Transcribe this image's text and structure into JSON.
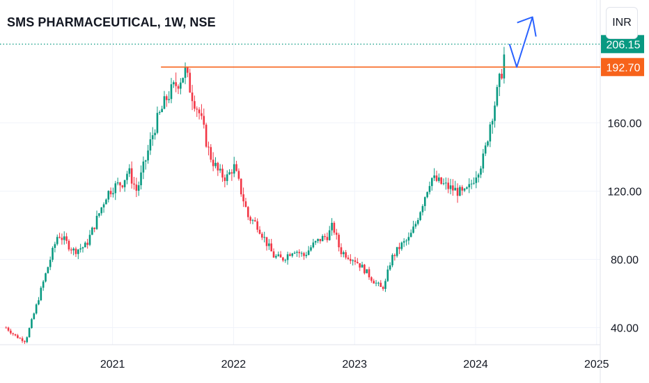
{
  "header": {
    "title": "SMS PHARMACEUTICAL, 1W, NSE",
    "currency": "INR"
  },
  "chart_data": {
    "type": "candlestick",
    "symbol": "SMS PHARMACEUTICAL",
    "interval": "1W",
    "exchange": "NSE",
    "currency": "INR",
    "x_tick_labels": [
      "2021",
      "2022",
      "2023",
      "2024",
      "2025"
    ],
    "y_tick_labels": [
      "40.00",
      "80.00",
      "120.00",
      "160.00"
    ],
    "ylim": [
      30,
      232
    ],
    "grid": true,
    "last_price": {
      "value": 206.15,
      "label": "206.15",
      "color": "#089981"
    },
    "resistance": {
      "value": 192.7,
      "label": "192.70",
      "color": "#f7631b",
      "from": 2021.4
    },
    "projection_arrow": {
      "color": "#2962ff",
      "points": [
        [
          2024.28,
          206.15
        ],
        [
          2024.34,
          192.7
        ],
        [
          2024.47,
          222
        ]
      ]
    },
    "up_color": "#089981",
    "down_color": "#f23645",
    "price_path": [
      [
        2020.12,
        40
      ],
      [
        2020.2,
        35
      ],
      [
        2020.28,
        32
      ],
      [
        2020.35,
        48
      ],
      [
        2020.45,
        72
      ],
      [
        2020.55,
        95
      ],
      [
        2020.68,
        85
      ],
      [
        2020.78,
        88
      ],
      [
        2020.85,
        100
      ],
      [
        2020.95,
        118
      ],
      [
        2021.0,
        122
      ],
      [
        2021.08,
        125
      ],
      [
        2021.13,
        132
      ],
      [
        2021.2,
        120
      ],
      [
        2021.28,
        140
      ],
      [
        2021.35,
        158
      ],
      [
        2021.45,
        175
      ],
      [
        2021.55,
        185
      ],
      [
        2021.6,
        190
      ],
      [
        2021.65,
        178
      ],
      [
        2021.72,
        165
      ],
      [
        2021.8,
        142
      ],
      [
        2021.88,
        130
      ],
      [
        2021.95,
        128
      ],
      [
        2022.0,
        135
      ],
      [
        2022.07,
        118
      ],
      [
        2022.12,
        105
      ],
      [
        2022.2,
        100
      ],
      [
        2022.27,
        90
      ],
      [
        2022.33,
        82
      ],
      [
        2022.4,
        80
      ],
      [
        2022.5,
        86
      ],
      [
        2022.58,
        82
      ],
      [
        2022.65,
        88
      ],
      [
        2022.72,
        92
      ],
      [
        2022.78,
        94
      ],
      [
        2022.82,
        100
      ],
      [
        2022.88,
        85
      ],
      [
        2022.95,
        82
      ],
      [
        2023.0,
        80
      ],
      [
        2023.08,
        74
      ],
      [
        2023.15,
        68
      ],
      [
        2023.22,
        63
      ],
      [
        2023.25,
        65
      ],
      [
        2023.3,
        80
      ],
      [
        2023.38,
        88
      ],
      [
        2023.45,
        92
      ],
      [
        2023.5,
        100
      ],
      [
        2023.57,
        115
      ],
      [
        2023.63,
        128
      ],
      [
        2023.7,
        125
      ],
      [
        2023.78,
        122
      ],
      [
        2023.85,
        120
      ],
      [
        2023.9,
        118
      ],
      [
        2023.95,
        122
      ],
      [
        2024.0,
        130
      ],
      [
        2024.07,
        140
      ],
      [
        2024.12,
        160
      ],
      [
        2024.18,
        178
      ],
      [
        2024.22,
        192
      ],
      [
        2024.25,
        206
      ]
    ]
  }
}
